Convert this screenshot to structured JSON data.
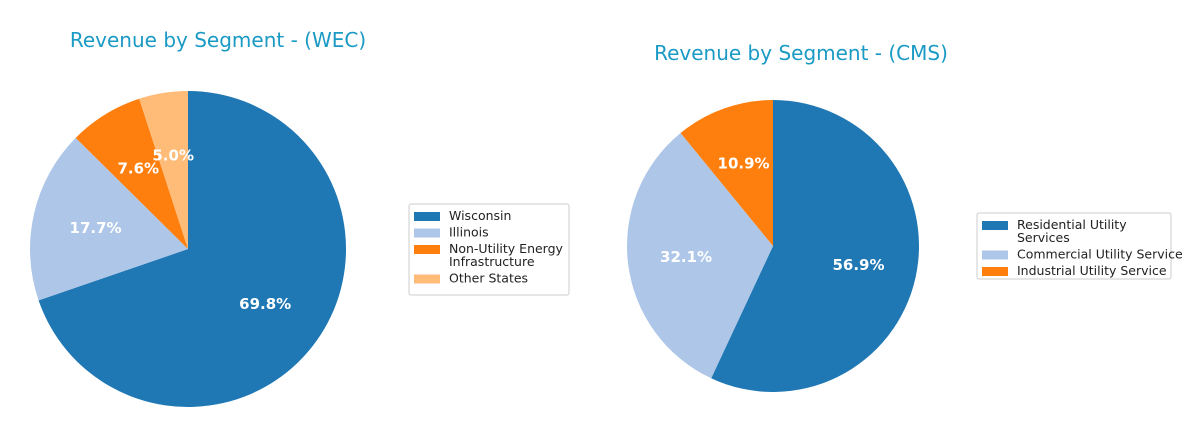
{
  "colors": {
    "title": "#1a9ac4",
    "label": "#ffffff",
    "legend_border": "#cccccc"
  },
  "chart_data": [
    {
      "type": "pie",
      "title": "Revenue by Segment - (WEC)",
      "start_angle_deg": 90,
      "direction": "clockwise",
      "legend_placement": "right",
      "labels": [
        "Wisconsin",
        "Illinois",
        "Non-Utility Energy Infrastructure",
        "Other States"
      ],
      "legend_lines": [
        [
          "Wisconsin"
        ],
        [
          "Illinois"
        ],
        [
          "Non-Utility Energy",
          "Infrastructure"
        ],
        [
          "Other States"
        ]
      ],
      "values": [
        69.8,
        17.7,
        7.6,
        5.0
      ],
      "value_labels": [
        "69.8%",
        "17.7%",
        "7.6%",
        "5.0%"
      ],
      "colors": [
        "#1f77b4",
        "#aec7e8",
        "#ff7f0e",
        "#ffbb78"
      ]
    },
    {
      "type": "pie",
      "title": "Revenue by Segment - (CMS)",
      "start_angle_deg": 90,
      "direction": "clockwise",
      "legend_placement": "right",
      "labels": [
        "Residential Utility Services",
        "Commercial Utility Service",
        "Industrial Utility Service"
      ],
      "legend_lines": [
        [
          "Residential Utility",
          "Services"
        ],
        [
          "Commercial Utility Service"
        ],
        [
          "Industrial Utility Service"
        ]
      ],
      "values": [
        56.9,
        32.1,
        10.9
      ],
      "value_labels": [
        "56.9%",
        "32.1%",
        "10.9%"
      ],
      "colors": [
        "#1f77b4",
        "#aec7e8",
        "#ff7f0e"
      ]
    }
  ]
}
